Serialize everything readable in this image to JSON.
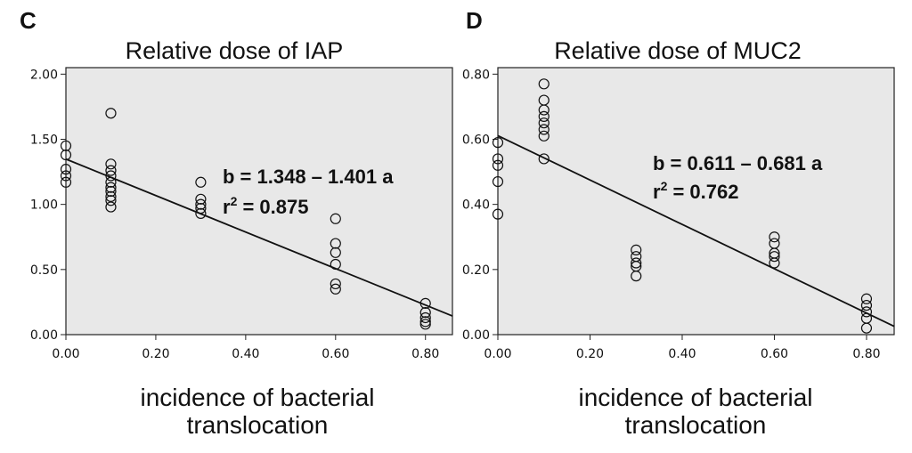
{
  "chart_data": [
    {
      "panel": "C",
      "type": "scatter",
      "title": "Relative dose of IAP",
      "xlabel_lines": [
        "incidence of bacterial",
        "translocation"
      ],
      "ylabel": "",
      "xlim": [
        0.0,
        0.86
      ],
      "ylim": [
        0.0,
        2.05
      ],
      "xticks": [
        0.0,
        0.2,
        0.4,
        0.6,
        0.8
      ],
      "xtick_labels": [
        "0.00",
        "0.20",
        "0.40",
        "0.60",
        "0.80"
      ],
      "yticks": [
        0.0,
        0.5,
        1.0,
        1.5,
        2.0
      ],
      "ytick_labels": [
        "0.00",
        "0.50",
        "1.00",
        "1.50",
        "2.00"
      ],
      "regression": {
        "intercept": 1.348,
        "slope": -1.401
      },
      "equation": "b = 1.348 – 1.401 a",
      "r2_label": "r",
      "r2_sup": "2",
      "r2_value": " = 0.875",
      "points": [
        {
          "x": 0.0,
          "y": 1.45
        },
        {
          "x": 0.0,
          "y": 1.38
        },
        {
          "x": 0.0,
          "y": 1.27
        },
        {
          "x": 0.0,
          "y": 1.22
        },
        {
          "x": 0.0,
          "y": 1.17
        },
        {
          "x": 0.1,
          "y": 1.7
        },
        {
          "x": 0.1,
          "y": 1.31
        },
        {
          "x": 0.1,
          "y": 1.26
        },
        {
          "x": 0.1,
          "y": 1.22
        },
        {
          "x": 0.1,
          "y": 1.17
        },
        {
          "x": 0.1,
          "y": 1.13
        },
        {
          "x": 0.1,
          "y": 1.1
        },
        {
          "x": 0.1,
          "y": 1.06
        },
        {
          "x": 0.1,
          "y": 1.03
        },
        {
          "x": 0.1,
          "y": 0.98
        },
        {
          "x": 0.3,
          "y": 1.17
        },
        {
          "x": 0.3,
          "y": 1.04
        },
        {
          "x": 0.3,
          "y": 1.0
        },
        {
          "x": 0.3,
          "y": 0.97
        },
        {
          "x": 0.3,
          "y": 0.93
        },
        {
          "x": 0.6,
          "y": 0.89
        },
        {
          "x": 0.6,
          "y": 0.7
        },
        {
          "x": 0.6,
          "y": 0.63
        },
        {
          "x": 0.6,
          "y": 0.54
        },
        {
          "x": 0.6,
          "y": 0.39
        },
        {
          "x": 0.6,
          "y": 0.35
        },
        {
          "x": 0.8,
          "y": 0.24
        },
        {
          "x": 0.8,
          "y": 0.17
        },
        {
          "x": 0.8,
          "y": 0.13
        },
        {
          "x": 0.8,
          "y": 0.1
        },
        {
          "x": 0.8,
          "y": 0.08
        }
      ]
    },
    {
      "panel": "D",
      "type": "scatter",
      "title": "Relative dose of MUC2",
      "xlabel_lines": [
        "incidence of bacterial",
        "translocation"
      ],
      "ylabel": "",
      "xlim": [
        0.0,
        0.86
      ],
      "ylim": [
        0.0,
        0.82
      ],
      "xticks": [
        0.0,
        0.2,
        0.4,
        0.6,
        0.8
      ],
      "xtick_labels": [
        "0.00",
        "0.20",
        "0.40",
        "0.60",
        "0.80"
      ],
      "yticks": [
        0.0,
        0.2,
        0.4,
        0.6,
        0.8
      ],
      "ytick_labels": [
        "0.00",
        "0.20",
        "0.40",
        "0.60",
        "0.80"
      ],
      "regression": {
        "intercept": 0.611,
        "slope": -0.681
      },
      "equation": "b = 0.611 – 0.681 a",
      "r2_label": "r",
      "r2_sup": "2",
      "r2_value": " = 0.762",
      "points": [
        {
          "x": 0.0,
          "y": 0.59
        },
        {
          "x": 0.0,
          "y": 0.54
        },
        {
          "x": 0.0,
          "y": 0.52
        },
        {
          "x": 0.0,
          "y": 0.47
        },
        {
          "x": 0.0,
          "y": 0.37
        },
        {
          "x": 0.1,
          "y": 0.77
        },
        {
          "x": 0.1,
          "y": 0.72
        },
        {
          "x": 0.1,
          "y": 0.69
        },
        {
          "x": 0.1,
          "y": 0.67
        },
        {
          "x": 0.1,
          "y": 0.65
        },
        {
          "x": 0.1,
          "y": 0.63
        },
        {
          "x": 0.1,
          "y": 0.61
        },
        {
          "x": 0.1,
          "y": 0.54
        },
        {
          "x": 0.3,
          "y": 0.26
        },
        {
          "x": 0.3,
          "y": 0.24
        },
        {
          "x": 0.3,
          "y": 0.22
        },
        {
          "x": 0.3,
          "y": 0.21
        },
        {
          "x": 0.3,
          "y": 0.18
        },
        {
          "x": 0.6,
          "y": 0.3
        },
        {
          "x": 0.6,
          "y": 0.28
        },
        {
          "x": 0.6,
          "y": 0.25
        },
        {
          "x": 0.6,
          "y": 0.24
        },
        {
          "x": 0.6,
          "y": 0.22
        },
        {
          "x": 0.8,
          "y": 0.11
        },
        {
          "x": 0.8,
          "y": 0.09
        },
        {
          "x": 0.8,
          "y": 0.07
        },
        {
          "x": 0.8,
          "y": 0.05
        },
        {
          "x": 0.8,
          "y": 0.02
        }
      ]
    }
  ]
}
